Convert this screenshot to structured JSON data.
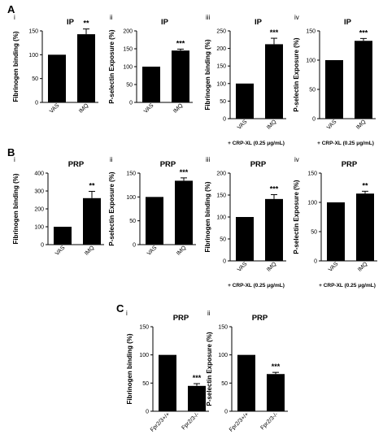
{
  "sections": [
    {
      "letter": "A"
    },
    {
      "letter": "B"
    },
    {
      "letter": "C"
    }
  ],
  "chart_data": [
    {
      "type": "bar",
      "panel": "i",
      "title": "IP",
      "ylabel": "Fibrinogen binding (%)",
      "categories": [
        "VAS",
        "IMQ"
      ],
      "values": [
        100,
        143
      ],
      "errors": [
        0,
        11
      ],
      "significance": "**",
      "ylim": [
        0,
        150
      ],
      "yticks": [
        0,
        50,
        100,
        150
      ],
      "note": ""
    },
    {
      "type": "bar",
      "panel": "ii",
      "title": "IP",
      "ylabel": "P-selectin Exposure (%)",
      "categories": [
        "VAS",
        "IMQ"
      ],
      "values": [
        100,
        145
      ],
      "errors": [
        0,
        4
      ],
      "significance": "***",
      "ylim": [
        0,
        200
      ],
      "yticks": [
        0,
        50,
        100,
        150,
        200
      ],
      "note": ""
    },
    {
      "type": "bar",
      "panel": "iii",
      "title": "IP",
      "ylabel": "Fibrinogen binding (%)",
      "categories": [
        "VAS",
        "IMQ"
      ],
      "values": [
        100,
        212
      ],
      "errors": [
        0,
        17
      ],
      "significance": "***",
      "ylim": [
        0,
        250
      ],
      "yticks": [
        0,
        50,
        100,
        150,
        200,
        250
      ],
      "note": "+ CRP-XL (0.25 μg/mL)"
    },
    {
      "type": "bar",
      "panel": "iv",
      "title": "IP",
      "ylabel": "P-selectin Exposure (%)",
      "categories": [
        "VAS",
        "IMQ"
      ],
      "values": [
        100,
        133
      ],
      "errors": [
        0,
        4
      ],
      "significance": "***",
      "ylim": [
        0,
        150
      ],
      "yticks": [
        0,
        50,
        100,
        150
      ],
      "note": "+ CRP-XL (0.25 μg/mL)"
    },
    {
      "type": "bar",
      "panel": "i",
      "title": "PRP",
      "ylabel": "Fibrinogen binding (%)",
      "categories": [
        "VAS",
        "IMQ"
      ],
      "values": [
        100,
        260
      ],
      "errors": [
        0,
        38
      ],
      "significance": "**",
      "ylim": [
        0,
        400
      ],
      "yticks": [
        0,
        100,
        200,
        300,
        400
      ],
      "note": ""
    },
    {
      "type": "bar",
      "panel": "ii",
      "title": "PRP",
      "ylabel": "P-selectin Exposure (%)",
      "categories": [
        "VAS",
        "IMQ"
      ],
      "values": [
        100,
        134
      ],
      "errors": [
        0,
        6
      ],
      "significance": "***",
      "ylim": [
        0,
        150
      ],
      "yticks": [
        0,
        50,
        100,
        150
      ],
      "note": ""
    },
    {
      "type": "bar",
      "panel": "iii",
      "title": "PRP",
      "ylabel": "Fibrinogen binding (%)",
      "categories": [
        "VAS",
        "IMQ"
      ],
      "values": [
        100,
        141
      ],
      "errors": [
        0,
        10
      ],
      "significance": "***",
      "ylim": [
        0,
        200
      ],
      "yticks": [
        0,
        50,
        100,
        150,
        200
      ],
      "note": "+ CRP-XL (0.25 μg/mL)"
    },
    {
      "type": "bar",
      "panel": "iv",
      "title": "PRP",
      "ylabel": "P-selectin Exposure (%)",
      "categories": [
        "VAS",
        "IMQ"
      ],
      "values": [
        100,
        115
      ],
      "errors": [
        0,
        4
      ],
      "significance": "**",
      "ylim": [
        0,
        150
      ],
      "yticks": [
        0,
        50,
        100,
        150
      ],
      "note": "+ CRP-XL (0.25 μg/mL)"
    },
    {
      "type": "bar",
      "panel": "i",
      "title": "PRP",
      "ylabel": "Fibrinogen binding (%)",
      "categories": [
        "Fpr2/3+/+",
        "Fpr2/3-/-"
      ],
      "values": [
        100,
        45
      ],
      "errors": [
        0,
        4
      ],
      "significance": "***",
      "ylim": [
        0,
        150
      ],
      "yticks": [
        0,
        50,
        100,
        150
      ],
      "note": ""
    },
    {
      "type": "bar",
      "panel": "ii",
      "title": "PRP",
      "ylabel": "P-selectin Exposure (%)",
      "categories": [
        "Fpr2/3+/+",
        "Fpr2/3-/-"
      ],
      "values": [
        100,
        66
      ],
      "errors": [
        0,
        3
      ],
      "significance": "***",
      "ylim": [
        0,
        150
      ],
      "yticks": [
        0,
        50,
        100,
        150
      ],
      "note": ""
    }
  ]
}
